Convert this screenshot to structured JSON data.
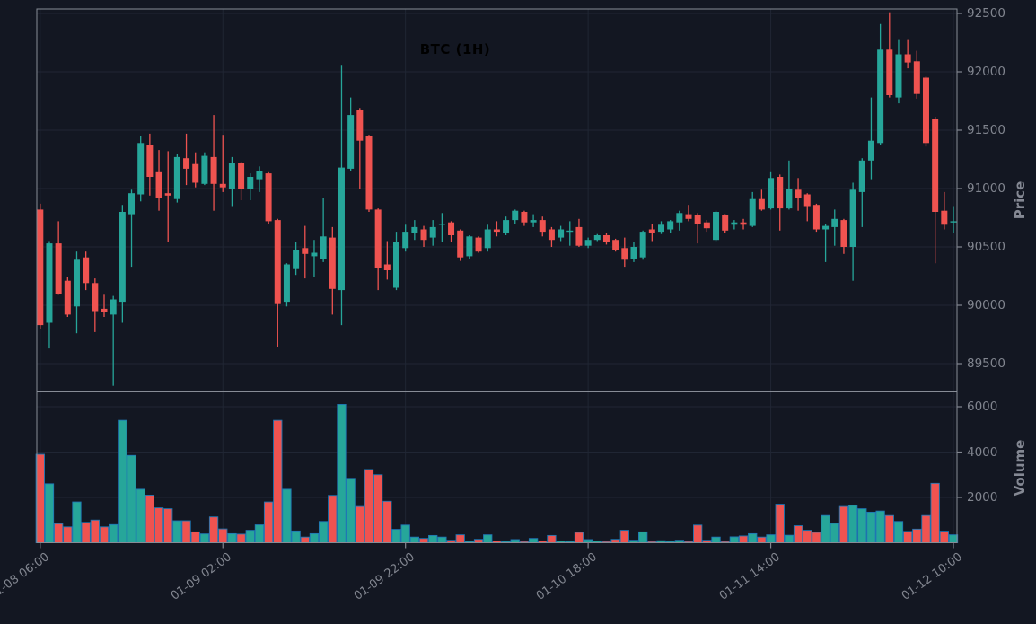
{
  "chart_data": {
    "type": "candlestick",
    "title": "BTC (1H)",
    "interval": "1H",
    "symbol": "BTC",
    "legend_position": "none",
    "grid": true,
    "colors": {
      "background": "#131722",
      "grid": "#202634",
      "spine": "#878c96",
      "tick_text": "#81858f",
      "title_text": "#07080c",
      "up": "#26a69a",
      "down": "#ef5350",
      "volume_edge": "#1f77b4"
    },
    "y_axis": {
      "label": "Price",
      "ticks": [
        89500,
        90000,
        90500,
        91000,
        91500,
        92000,
        92500
      ],
      "min": 89420,
      "max": 92540
    },
    "volume_axis": {
      "label": "Volume",
      "ticks": [
        2000,
        4000,
        6000
      ],
      "min": 0,
      "max": 6600
    },
    "x_axis": {
      "tick_labels": [
        "01-08 06:00",
        "01-09 02:00",
        "01-09 22:00",
        "01-10 18:00",
        "01-11 14:00",
        "01-12 10:00"
      ],
      "tick_candle_indices": [
        0,
        20,
        40,
        60,
        80,
        100
      ]
    },
    "candles_note": "each candle = [open, high, low, close, volume]; hourly from 01-08 06:00 to 01-12 10:00",
    "candles": [
      [
        90820,
        90870,
        89800,
        89830,
        3900
      ],
      [
        89850,
        90550,
        89630,
        90530,
        2600
      ],
      [
        90530,
        90720,
        90090,
        90100,
        840
      ],
      [
        90210,
        90240,
        89900,
        89920,
        700
      ],
      [
        89990,
        90460,
        89760,
        90390,
        1800
      ],
      [
        90410,
        90460,
        90130,
        90190,
        900
      ],
      [
        90190,
        90230,
        89770,
        89950,
        1000
      ],
      [
        89970,
        90090,
        89900,
        89940,
        700
      ],
      [
        89920,
        90080,
        89310,
        90050,
        800
      ],
      [
        90030,
        90860,
        89850,
        90800,
        5400
      ],
      [
        90780,
        90990,
        90330,
        90960,
        3850
      ],
      [
        90950,
        91450,
        90890,
        91390,
        2360
      ],
      [
        91370,
        91470,
        90940,
        91100,
        2100
      ],
      [
        91140,
        91330,
        90810,
        90920,
        1540
      ],
      [
        90960,
        91320,
        90540,
        90940,
        1500
      ],
      [
        90910,
        91300,
        90880,
        91270,
        970
      ],
      [
        91260,
        91470,
        91030,
        91170,
        970
      ],
      [
        91210,
        91310,
        91010,
        91050,
        480
      ],
      [
        91040,
        91310,
        91030,
        91280,
        390
      ],
      [
        91270,
        91630,
        90810,
        91040,
        1140
      ],
      [
        91040,
        91460,
        90970,
        91010,
        610
      ],
      [
        91000,
        91270,
        90850,
        91220,
        400
      ],
      [
        91220,
        91230,
        90900,
        91000,
        380
      ],
      [
        91000,
        91130,
        90900,
        91100,
        550
      ],
      [
        91080,
        91190,
        90970,
        91150,
        790
      ],
      [
        91130,
        91140,
        90700,
        90720,
        1800
      ],
      [
        90730,
        90740,
        89640,
        90010,
        5400
      ],
      [
        90030,
        90360,
        89990,
        90350,
        2360
      ],
      [
        90310,
        90540,
        90260,
        90470,
        520
      ],
      [
        90490,
        90680,
        90230,
        90440,
        250
      ],
      [
        90420,
        90560,
        90240,
        90450,
        400
      ],
      [
        90400,
        90920,
        90370,
        90590,
        940
      ],
      [
        90580,
        90670,
        89920,
        90140,
        2090
      ],
      [
        90130,
        92060,
        89830,
        91180,
        6100
      ],
      [
        91170,
        91780,
        91150,
        91630,
        2840
      ],
      [
        91670,
        91690,
        91000,
        91410,
        1600
      ],
      [
        91450,
        91460,
        90800,
        90820,
        3230
      ],
      [
        90820,
        90830,
        90130,
        90320,
        3000
      ],
      [
        90350,
        90550,
        90220,
        90300,
        1830
      ],
      [
        90150,
        90630,
        90130,
        90540,
        590
      ],
      [
        90490,
        90690,
        90460,
        90630,
        780
      ],
      [
        90620,
        90730,
        90560,
        90670,
        250
      ],
      [
        90650,
        90680,
        90500,
        90560,
        190
      ],
      [
        90580,
        90730,
        90510,
        90670,
        320
      ],
      [
        90690,
        90790,
        90540,
        90700,
        250
      ],
      [
        90710,
        90720,
        90540,
        90600,
        110
      ],
      [
        90640,
        90650,
        90380,
        90410,
        350
      ],
      [
        90420,
        90600,
        90400,
        90590,
        60
      ],
      [
        90580,
        90590,
        90450,
        90460,
        150
      ],
      [
        90490,
        90690,
        90460,
        90650,
        350
      ],
      [
        90650,
        90720,
        90590,
        90630,
        80
      ],
      [
        90620,
        90760,
        90600,
        90730,
        60
      ],
      [
        90730,
        90820,
        90700,
        90810,
        140
      ],
      [
        90800,
        90810,
        90680,
        90710,
        60
      ],
      [
        90710,
        90780,
        90670,
        90730,
        190
      ],
      [
        90730,
        90760,
        90590,
        90630,
        80
      ],
      [
        90650,
        90670,
        90500,
        90560,
        320
      ],
      [
        90580,
        90680,
        90550,
        90650,
        80
      ],
      [
        90630,
        90720,
        90510,
        90640,
        60
      ],
      [
        90670,
        90740,
        90500,
        90510,
        460
      ],
      [
        90510,
        90580,
        90490,
        90560,
        140
      ],
      [
        90560,
        90610,
        90550,
        90600,
        80
      ],
      [
        90600,
        90620,
        90520,
        90540,
        60
      ],
      [
        90560,
        90570,
        90460,
        90470,
        150
      ],
      [
        90490,
        90580,
        90330,
        90390,
        550
      ],
      [
        90400,
        90540,
        90370,
        90500,
        110
      ],
      [
        90410,
        90640,
        90390,
        90630,
        480
      ],
      [
        90650,
        90700,
        90550,
        90620,
        60
      ],
      [
        90630,
        90720,
        90610,
        90690,
        90
      ],
      [
        90650,
        90730,
        90620,
        90720,
        60
      ],
      [
        90710,
        90810,
        90640,
        90790,
        110
      ],
      [
        90780,
        90860,
        90720,
        90740,
        60
      ],
      [
        90770,
        90790,
        90530,
        90700,
        780
      ],
      [
        90710,
        90730,
        90630,
        90660,
        110
      ],
      [
        90560,
        90810,
        90550,
        90800,
        250
      ],
      [
        90770,
        90780,
        90620,
        90640,
        60
      ],
      [
        90690,
        90730,
        90650,
        90710,
        260
      ],
      [
        90710,
        90740,
        90650,
        90690,
        300
      ],
      [
        90680,
        90970,
        90670,
        90910,
        400
      ],
      [
        90910,
        90990,
        90810,
        90820,
        250
      ],
      [
        90830,
        91140,
        90820,
        91090,
        350
      ],
      [
        91100,
        91120,
        90640,
        90830,
        1700
      ],
      [
        90830,
        91240,
        90820,
        91000,
        330
      ],
      [
        90990,
        91090,
        90810,
        90920,
        750
      ],
      [
        90950,
        90960,
        90720,
        90850,
        550
      ],
      [
        90860,
        90870,
        90630,
        90650,
        460
      ],
      [
        90650,
        90700,
        90370,
        90680,
        1200
      ],
      [
        90670,
        90820,
        90510,
        90740,
        850
      ],
      [
        90730,
        90740,
        90440,
        90500,
        1600
      ],
      [
        90500,
        91050,
        90210,
        90990,
        1650
      ],
      [
        90970,
        91260,
        90670,
        91240,
        1500
      ],
      [
        91240,
        91780,
        91080,
        91410,
        1350
      ],
      [
        91390,
        92410,
        91370,
        92190,
        1400
      ],
      [
        92190,
        92510,
        91780,
        91800,
        1200
      ],
      [
        91780,
        92280,
        91730,
        92150,
        940
      ],
      [
        92150,
        92280,
        92030,
        92080,
        500
      ],
      [
        92090,
        92180,
        91770,
        91810,
        600
      ],
      [
        91950,
        91960,
        91360,
        91390,
        1200
      ],
      [
        91600,
        91615,
        90360,
        90800,
        2620
      ],
      [
        90810,
        90970,
        90650,
        90690,
        510
      ],
      [
        90710,
        90850,
        90620,
        90720,
        350
      ]
    ]
  }
}
